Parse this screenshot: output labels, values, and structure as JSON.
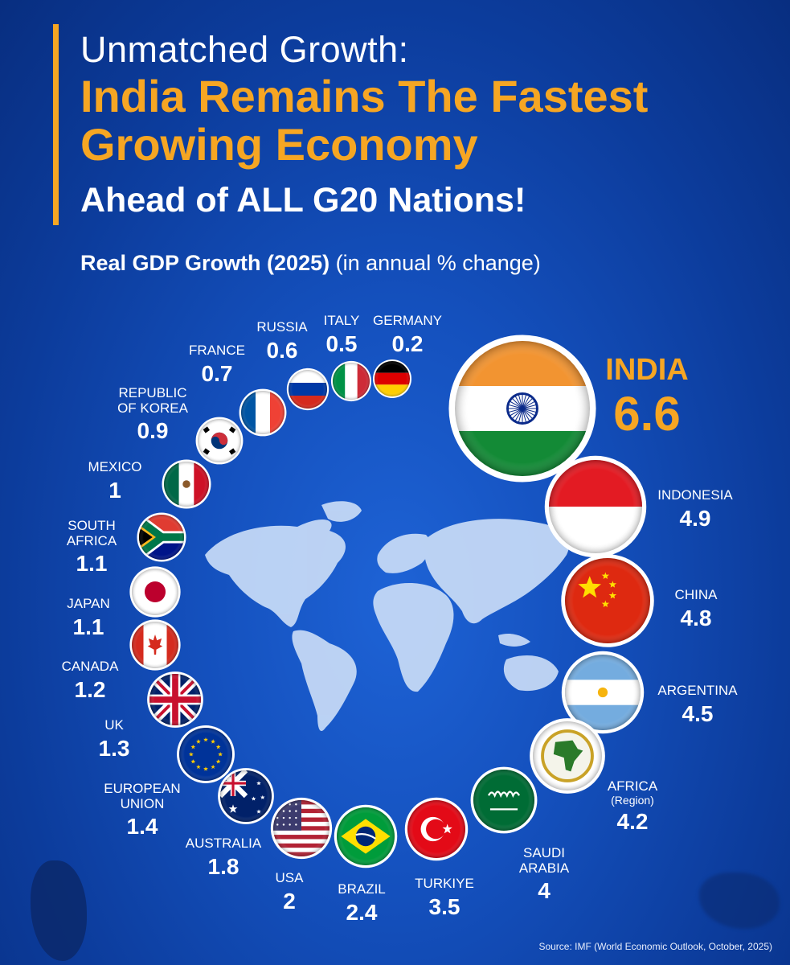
{
  "header": {
    "title_line1": "Unmatched Growth:",
    "title_line2": "India Remains The Fastest Growing Economy",
    "title_line3": "Ahead of ALL G20 Nations!",
    "subtitle_main": "Real GDP Growth (2025)",
    "subtitle_unit": "(in annual % change)"
  },
  "colors": {
    "accent": "#f6a623",
    "background": "#1450bd",
    "map": "#c9dcf7"
  },
  "chart_data": {
    "type": "bubble",
    "title": "Real GDP Growth (2025)",
    "unit": "(in annual % change)",
    "categories": [
      "India",
      "Indonesia",
      "China",
      "Argentina",
      "Africa",
      "Saudi Arabia",
      "Turkiye",
      "Brazil",
      "USA",
      "Australia",
      "European Union",
      "UK",
      "Canada",
      "Japan",
      "South Africa",
      "Mexico",
      "Republic of Korea",
      "France",
      "Russia",
      "Italy",
      "Germany"
    ],
    "values": [
      6.6,
      4.9,
      4.8,
      4.5,
      4.2,
      4,
      3.5,
      2.4,
      2,
      1.8,
      1.4,
      1.3,
      1.2,
      1.1,
      1.1,
      1,
      0.9,
      0.7,
      0.6,
      0.5,
      0.2
    ],
    "items": [
      {
        "name": "INDIA",
        "value": "6.6",
        "flag": "india-flag"
      },
      {
        "name": "INDONESIA",
        "value": "4.9",
        "flag": "indonesia-flag"
      },
      {
        "name": "CHINA",
        "value": "4.8",
        "flag": "china-flag"
      },
      {
        "name": "ARGENTINA",
        "value": "4.5",
        "flag": "argentina-flag"
      },
      {
        "name": "AFRICA",
        "note": "(Region)",
        "value": "4.2",
        "flag": "african-union-flag"
      },
      {
        "name": "SAUDI\nARABIA",
        "value": "4",
        "flag": "saudi-arabia-flag"
      },
      {
        "name": "TURKIYE",
        "value": "3.5",
        "flag": "turkiye-flag"
      },
      {
        "name": "BRAZIL",
        "value": "2.4",
        "flag": "brazil-flag"
      },
      {
        "name": "USA",
        "value": "2",
        "flag": "usa-flag"
      },
      {
        "name": "AUSTRALIA",
        "value": "1.8",
        "flag": "australia-flag"
      },
      {
        "name": "EUROPEAN\nUNION",
        "value": "1.4",
        "flag": "eu-flag"
      },
      {
        "name": "UK",
        "value": "1.3",
        "flag": "uk-flag"
      },
      {
        "name": "CANADA",
        "value": "1.2",
        "flag": "canada-flag"
      },
      {
        "name": "JAPAN",
        "value": "1.1",
        "flag": "japan-flag"
      },
      {
        "name": "SOUTH\nAFRICA",
        "value": "1.1",
        "flag": "south-africa-flag"
      },
      {
        "name": "MEXICO",
        "value": "1",
        "flag": "mexico-flag"
      },
      {
        "name": "REPUBLIC\nOF KOREA",
        "value": "0.9",
        "flag": "korea-flag"
      },
      {
        "name": "FRANCE",
        "value": "0.7",
        "flag": "france-flag"
      },
      {
        "name": "RUSSIA",
        "value": "0.6",
        "flag": "russia-flag"
      },
      {
        "name": "ITALY",
        "value": "0.5",
        "flag": "italy-flag"
      },
      {
        "name": "GERMANY",
        "value": "0.2",
        "flag": "germany-flag"
      }
    ]
  },
  "footer": {
    "source": "Source: IMF (World Economic Outlook, October, 2025)"
  }
}
